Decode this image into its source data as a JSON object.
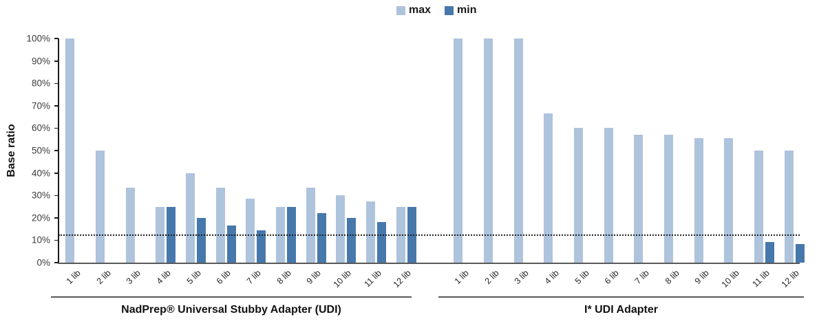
{
  "legend": {
    "max_label": "max",
    "min_label": "min"
  },
  "colors": {
    "max_series": "#AEC3DC",
    "min_series": "#4678AC",
    "axis_line": "#595959",
    "y_axis_line": "#1a1a1a",
    "threshold_line": "#1f1f1f",
    "tick_label": "#3b3b3b"
  },
  "chart_data": {
    "type": "bar",
    "title": "",
    "ylabel": "Base ratio",
    "xlabel": "",
    "ylim": [
      0,
      100
    ],
    "y_ticks": [
      "0%",
      "10%",
      "20%",
      "30%",
      "40%",
      "50%",
      "60%",
      "70%",
      "80%",
      "90%",
      "100%"
    ],
    "grid": false,
    "legend_position": "top-center",
    "threshold_line_pct": 12,
    "categories": [
      "1 lib",
      "2 lib",
      "3 lib",
      "4 lib",
      "5 lib",
      "6 lib",
      "7 lib",
      "8 lib",
      "9 lib",
      "10 lib",
      "11 lib",
      "12 lib"
    ],
    "groups": [
      {
        "title": "NadPrep® Universal Stubby Adapter (UDI)",
        "series": [
          {
            "name": "max",
            "values": [
              100,
              50,
              33.3,
              25,
              40,
              33.3,
              28.6,
              25,
              33.3,
              30,
              27.3,
              25
            ]
          },
          {
            "name": "min",
            "values": [
              0,
              0,
              0,
              25,
              20,
              16.7,
              14.3,
              25,
              22.2,
              20,
              18.2,
              25
            ]
          }
        ]
      },
      {
        "title": "I* UDI Adapter",
        "series": [
          {
            "name": "max",
            "values": [
              100,
              100,
              100,
              66.7,
              60,
              60,
              57.1,
              57.1,
              55.6,
              55.6,
              50,
              50
            ]
          },
          {
            "name": "min",
            "values": [
              0,
              0,
              0,
              0,
              0,
              0,
              0,
              0,
              0,
              0,
              9.1,
              8.3
            ]
          }
        ]
      }
    ]
  }
}
